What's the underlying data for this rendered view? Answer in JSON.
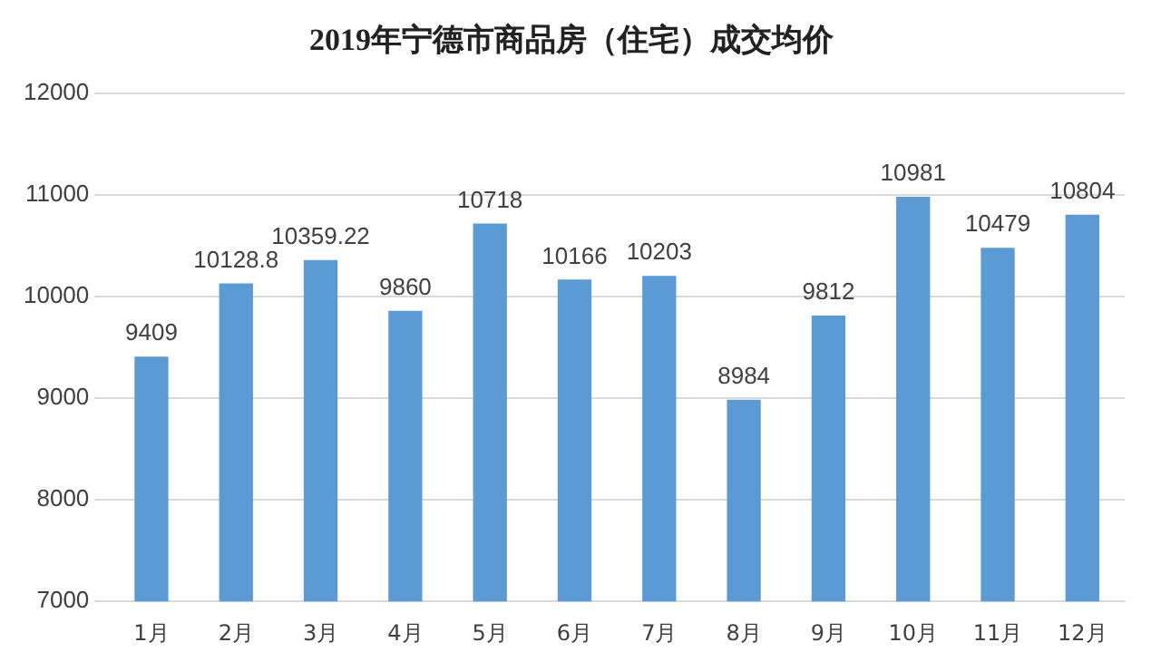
{
  "chart_data": {
    "type": "bar",
    "title": "2019年宁德市商品房（住宅）成交均价",
    "categories": [
      "1月",
      "2月",
      "3月",
      "4月",
      "5月",
      "6月",
      "7月",
      "8月",
      "9月",
      "10月",
      "11月",
      "12月"
    ],
    "values": [
      9409,
      10128.8,
      10359.22,
      9860,
      10718,
      10166,
      10203,
      8984,
      9812,
      10981,
      10479,
      10804
    ],
    "color": "#5b9bd5",
    "ylim": [
      7000,
      12000
    ],
    "yticks": [
      7000,
      8000,
      9000,
      10000,
      11000,
      12000
    ],
    "grid": "y",
    "data_labels": true
  }
}
